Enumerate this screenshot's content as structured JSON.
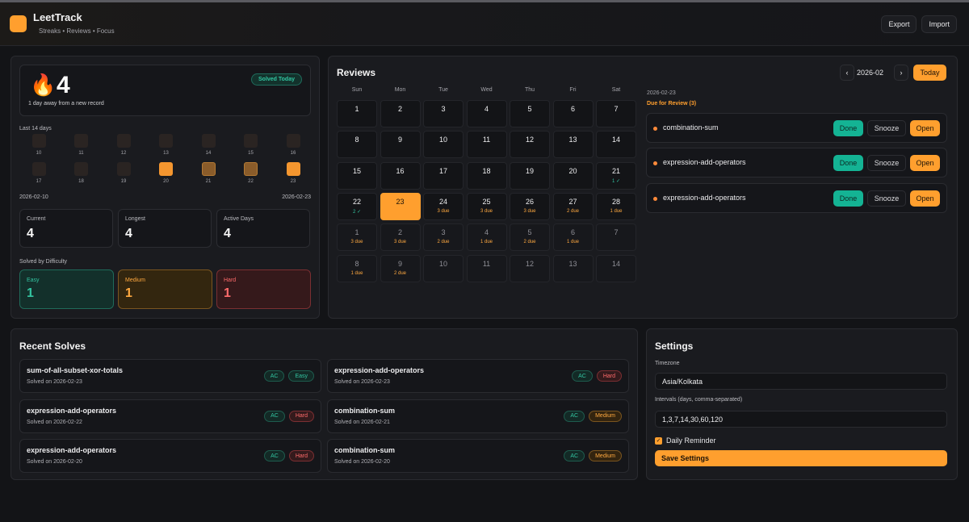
{
  "app": {
    "name": "LeetTrack",
    "tagline": "Streaks • Reviews • Focus",
    "export_label": "Export",
    "import_label": "Import"
  },
  "streak": {
    "flame_icon": "🔥",
    "count": "4",
    "subtitle": "1 day away from a new record",
    "badge": "Solved Today",
    "last_days_label": "Last 14 days",
    "days": [
      {
        "n": "10",
        "state": "off"
      },
      {
        "n": "11",
        "state": "off"
      },
      {
        "n": "12",
        "state": "off"
      },
      {
        "n": "13",
        "state": "off"
      },
      {
        "n": "14",
        "state": "off"
      },
      {
        "n": "15",
        "state": "off"
      },
      {
        "n": "16",
        "state": "off"
      },
      {
        "n": "17",
        "state": "off"
      },
      {
        "n": "18",
        "state": "off"
      },
      {
        "n": "19",
        "state": "off"
      },
      {
        "n": "20",
        "state": "on"
      },
      {
        "n": "21",
        "state": "dim"
      },
      {
        "n": "22",
        "state": "dim"
      },
      {
        "n": "23",
        "state": "on"
      }
    ],
    "range_start": "2026-02-10",
    "range_end": "2026-02-23",
    "stats": [
      {
        "label": "Current",
        "value": "4"
      },
      {
        "label": "Longest",
        "value": "4"
      },
      {
        "label": "Active Days",
        "value": "4"
      }
    ],
    "difficulty_label": "Solved by Difficulty",
    "difficulty": [
      {
        "label": "Easy",
        "value": "1",
        "color": "#33c3a0"
      },
      {
        "label": "Medium",
        "value": "1",
        "color": "#ffa940"
      },
      {
        "label": "Hard",
        "value": "1",
        "color": "#ff6b6b"
      }
    ]
  },
  "reviews": {
    "title": "Reviews",
    "prev_icon": "‹",
    "next_icon": "›",
    "month": "2026-02",
    "today_label": "Today",
    "weekdays": [
      "Sun",
      "Mon",
      "Tue",
      "Wed",
      "Thu",
      "Fri",
      "Sat"
    ],
    "weeks": [
      [
        {
          "n": "1",
          "s": ""
        },
        {
          "n": "2",
          "s": ""
        },
        {
          "n": "3",
          "s": ""
        },
        {
          "n": "4",
          "s": ""
        },
        {
          "n": "5",
          "s": ""
        },
        {
          "n": "6",
          "s": ""
        },
        {
          "n": "7",
          "s": ""
        }
      ],
      [
        {
          "n": "8",
          "s": ""
        },
        {
          "n": "9",
          "s": ""
        },
        {
          "n": "10",
          "s": ""
        },
        {
          "n": "11",
          "s": ""
        },
        {
          "n": "12",
          "s": ""
        },
        {
          "n": "13",
          "s": ""
        },
        {
          "n": "14",
          "s": ""
        }
      ],
      [
        {
          "n": "15",
          "s": ""
        },
        {
          "n": "16",
          "s": ""
        },
        {
          "n": "17",
          "s": ""
        },
        {
          "n": "18",
          "s": ""
        },
        {
          "n": "19",
          "s": ""
        },
        {
          "n": "20",
          "s": ""
        },
        {
          "n": "21",
          "s": "1 ✓",
          "k": "done"
        }
      ],
      [
        {
          "n": "22",
          "s": "2 ✓",
          "k": "done"
        },
        {
          "n": "23",
          "s": "",
          "k": "sel"
        },
        {
          "n": "24",
          "s": "3 due"
        },
        {
          "n": "25",
          "s": "3 due"
        },
        {
          "n": "26",
          "s": "3 due"
        },
        {
          "n": "27",
          "s": "2 due"
        },
        {
          "n": "28",
          "s": "1 due"
        }
      ],
      [
        {
          "n": "1",
          "s": "3 due",
          "f": 1
        },
        {
          "n": "2",
          "s": "3 due",
          "f": 1
        },
        {
          "n": "3",
          "s": "2 due",
          "f": 1
        },
        {
          "n": "4",
          "s": "1 due",
          "f": 1
        },
        {
          "n": "5",
          "s": "2 due",
          "f": 1
        },
        {
          "n": "6",
          "s": "1 due",
          "f": 1
        },
        {
          "n": "7",
          "s": "",
          "f": 1
        }
      ],
      [
        {
          "n": "8",
          "s": "1 due",
          "f": 1
        },
        {
          "n": "9",
          "s": "2 due",
          "f": 1
        },
        {
          "n": "10",
          "s": "",
          "f": 1
        },
        {
          "n": "11",
          "s": "",
          "f": 1
        },
        {
          "n": "12",
          "s": "",
          "f": 1
        },
        {
          "n": "13",
          "s": "",
          "f": 1
        },
        {
          "n": "14",
          "s": "",
          "f": 1
        }
      ]
    ],
    "selected_date": "2026-02-23",
    "due_title": "Due for Review (3)",
    "items": [
      {
        "name": "combination-sum"
      },
      {
        "name": "expression-add-operators"
      },
      {
        "name": "expression-add-operators"
      }
    ],
    "done_label": "Done",
    "snooze_label": "Snooze",
    "open_label": "Open"
  },
  "recent": {
    "title": "Recent Solves",
    "items": [
      {
        "name": "sum-of-all-subset-xor-totals",
        "date": "Solved on 2026-02-23",
        "status": "AC",
        "difficulty": "Easy"
      },
      {
        "name": "expression-add-operators",
        "date": "Solved on 2026-02-23",
        "status": "AC",
        "difficulty": "Hard"
      },
      {
        "name": "expression-add-operators",
        "date": "Solved on 2026-02-22",
        "status": "AC",
        "difficulty": "Hard"
      },
      {
        "name": "combination-sum",
        "date": "Solved on 2026-02-21",
        "status": "AC",
        "difficulty": "Medium"
      },
      {
        "name": "expression-add-operators",
        "date": "Solved on 2026-02-20",
        "status": "AC",
        "difficulty": "Hard"
      },
      {
        "name": "combination-sum",
        "date": "Solved on 2026-02-20",
        "status": "AC",
        "difficulty": "Medium"
      }
    ]
  },
  "settings": {
    "title": "Settings",
    "timezone_label": "Timezone",
    "timezone_value": "Asia/Kolkata",
    "intervals_label": "Intervals (days, comma-separated)",
    "intervals_value": "1,3,7,14,30,60,120",
    "reminder_label": "Daily Reminder",
    "reminder_checked": true,
    "save_label": "Save Settings"
  },
  "colors": {
    "accent": "#ff9f2e",
    "success": "#14b394",
    "danger": "#ff6b6b"
  }
}
